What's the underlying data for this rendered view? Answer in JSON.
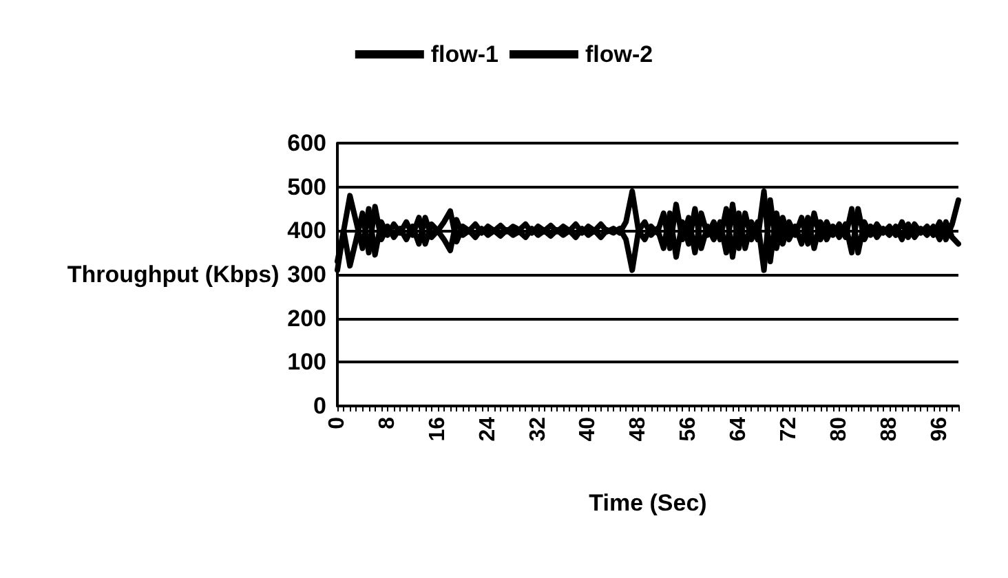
{
  "chart_data": {
    "type": "line",
    "xlabel": "Time (Sec)",
    "ylabel": "Throughput (Kbps)",
    "categories": [
      "0",
      null,
      null,
      null,
      null,
      null,
      null,
      null,
      "8",
      null,
      null,
      null,
      null,
      null,
      null,
      null,
      "16",
      null,
      null,
      null,
      null,
      null,
      null,
      null,
      "24",
      null,
      null,
      null,
      null,
      null,
      null,
      null,
      "32",
      null,
      null,
      null,
      null,
      null,
      null,
      null,
      "40",
      null,
      null,
      null,
      null,
      null,
      null,
      null,
      "48",
      null,
      null,
      null,
      null,
      null,
      null,
      null,
      "56",
      null,
      null,
      null,
      null,
      null,
      null,
      null,
      "64",
      null,
      null,
      null,
      null,
      null,
      null,
      null,
      "72",
      null,
      null,
      null,
      null,
      null,
      null,
      null,
      "80",
      null,
      null,
      null,
      null,
      null,
      null,
      null,
      "88",
      null,
      null,
      null,
      null,
      null,
      null,
      null,
      "96",
      null,
      null,
      null
    ],
    "series": [
      {
        "name": "flow-1",
        "color": "#000000",
        "values": [
          310,
          400,
          320,
          380,
          440,
          350,
          455,
          380,
          410,
          385,
          405,
          380,
          410,
          370,
          430,
          385,
          400,
          380,
          355,
          425,
          390,
          400,
          385,
          405,
          390,
          400,
          388,
          402,
          390,
          398,
          385,
          405,
          390,
          400,
          388,
          402,
          390,
          400,
          385,
          405,
          390,
          400,
          385,
          402,
          395,
          405,
          380,
          310,
          400,
          420,
          390,
          405,
          360,
          440,
          340,
          420,
          370,
          450,
          360,
          410,
          380,
          420,
          350,
          460,
          360,
          440,
          380,
          420,
          310,
          470,
          360,
          430,
          380,
          410,
          370,
          430,
          360,
          420,
          380,
          410,
          385,
          415,
          350,
          450,
          380,
          410,
          385,
          405,
          390,
          410,
          380,
          415,
          385,
          405,
          390,
          410,
          380,
          420,
          385,
          370
        ]
      },
      {
        "name": "flow-2",
        "color": "#000000",
        "values": [
          330,
          400,
          480,
          420,
          360,
          450,
          345,
          420,
          390,
          415,
          395,
          420,
          390,
          430,
          370,
          415,
          400,
          420,
          445,
          375,
          410,
          400,
          415,
          395,
          410,
          400,
          412,
          398,
          410,
          402,
          415,
          395,
          410,
          400,
          412,
          398,
          410,
          400,
          415,
          395,
          410,
          400,
          415,
          398,
          405,
          395,
          420,
          490,
          400,
          380,
          410,
          395,
          440,
          360,
          460,
          380,
          430,
          350,
          440,
          390,
          420,
          380,
          450,
          340,
          440,
          360,
          420,
          380,
          490,
          330,
          440,
          370,
          420,
          390,
          430,
          370,
          440,
          380,
          420,
          390,
          415,
          385,
          450,
          350,
          420,
          390,
          415,
          395,
          410,
          390,
          420,
          385,
          415,
          395,
          410,
          390,
          420,
          380,
          415,
          470
        ]
      }
    ],
    "ylim": [
      0,
      600
    ],
    "yticks": [
      0,
      100,
      200,
      300,
      400,
      500,
      600
    ],
    "grid": "y",
    "legend": "top",
    "line_style": "solid",
    "marker": "none"
  }
}
